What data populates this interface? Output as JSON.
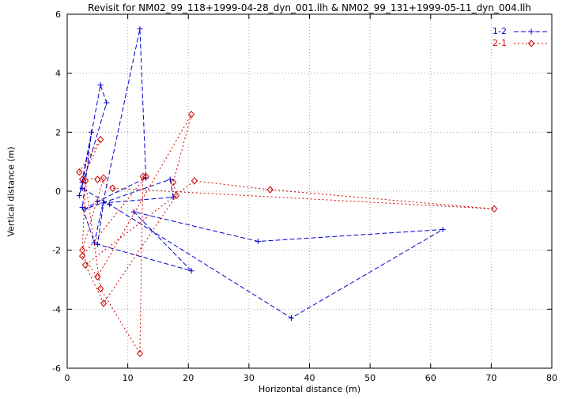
{
  "chart_data": {
    "type": "line",
    "title": "Revisit for NM02_99_118+1999-04-28_dyn_001.llh & NM02_99_131+1999-05-11_dyn_004.llh",
    "xlabel": "Horizontal distance (m)",
    "ylabel": "Vertical distance (m)",
    "xlim": [
      0,
      80
    ],
    "ylim": [
      -6,
      6
    ],
    "xticks": [
      0,
      10,
      20,
      30,
      40,
      50,
      60,
      70,
      80
    ],
    "yticks": [
      -6,
      -4,
      -2,
      0,
      2,
      4,
      6
    ],
    "grid": true,
    "grid_color": "#a8a8a8",
    "border_color": "#000000",
    "legend_position": "top-right",
    "series": [
      {
        "name": "1-2",
        "color": "#0000cd",
        "marker": "plus",
        "dash": "6,3",
        "points": [
          [
            2.5,
            0.3
          ],
          [
            5.5,
            3.6
          ],
          [
            6.5,
            3.0
          ],
          [
            2.0,
            -0.15
          ],
          [
            4.0,
            2.0
          ],
          [
            2.5,
            -0.55
          ],
          [
            4.5,
            -1.75
          ],
          [
            12.0,
            5.5
          ],
          [
            13.0,
            0.45
          ],
          [
            5.0,
            -0.35
          ],
          [
            3.0,
            -0.6
          ],
          [
            17.0,
            0.4
          ],
          [
            17.5,
            -0.2
          ],
          [
            6.0,
            -0.4
          ],
          [
            5.0,
            -1.8
          ],
          [
            20.5,
            -2.7
          ],
          [
            11.0,
            -0.7
          ],
          [
            31.5,
            -1.7
          ],
          [
            62.0,
            -1.3
          ],
          [
            37.0,
            -4.3
          ],
          [
            7.0,
            -0.45
          ],
          [
            2.5,
            0.1
          ]
        ]
      },
      {
        "name": "2-1",
        "color": "#cd0000",
        "marker": "diamond",
        "dash": "2,3",
        "points": [
          [
            2.0,
            0.65
          ],
          [
            5.5,
            1.75
          ],
          [
            2.5,
            0.4
          ],
          [
            6.0,
            0.45
          ],
          [
            2.5,
            -2.0
          ],
          [
            3.0,
            0.35
          ],
          [
            5.5,
            -3.3
          ],
          [
            12.0,
            -5.5
          ],
          [
            12.5,
            0.5
          ],
          [
            13.0,
            0.5
          ],
          [
            2.5,
            -2.2
          ],
          [
            5.0,
            -2.9
          ],
          [
            20.5,
            2.6
          ],
          [
            17.5,
            0.3
          ],
          [
            18.0,
            -0.15
          ],
          [
            6.0,
            -3.8
          ],
          [
            3.0,
            -2.5
          ],
          [
            21.0,
            0.35
          ],
          [
            33.5,
            0.05
          ],
          [
            70.5,
            -0.6
          ],
          [
            7.5,
            0.1
          ],
          [
            5.0,
            0.4
          ]
        ]
      }
    ]
  }
}
